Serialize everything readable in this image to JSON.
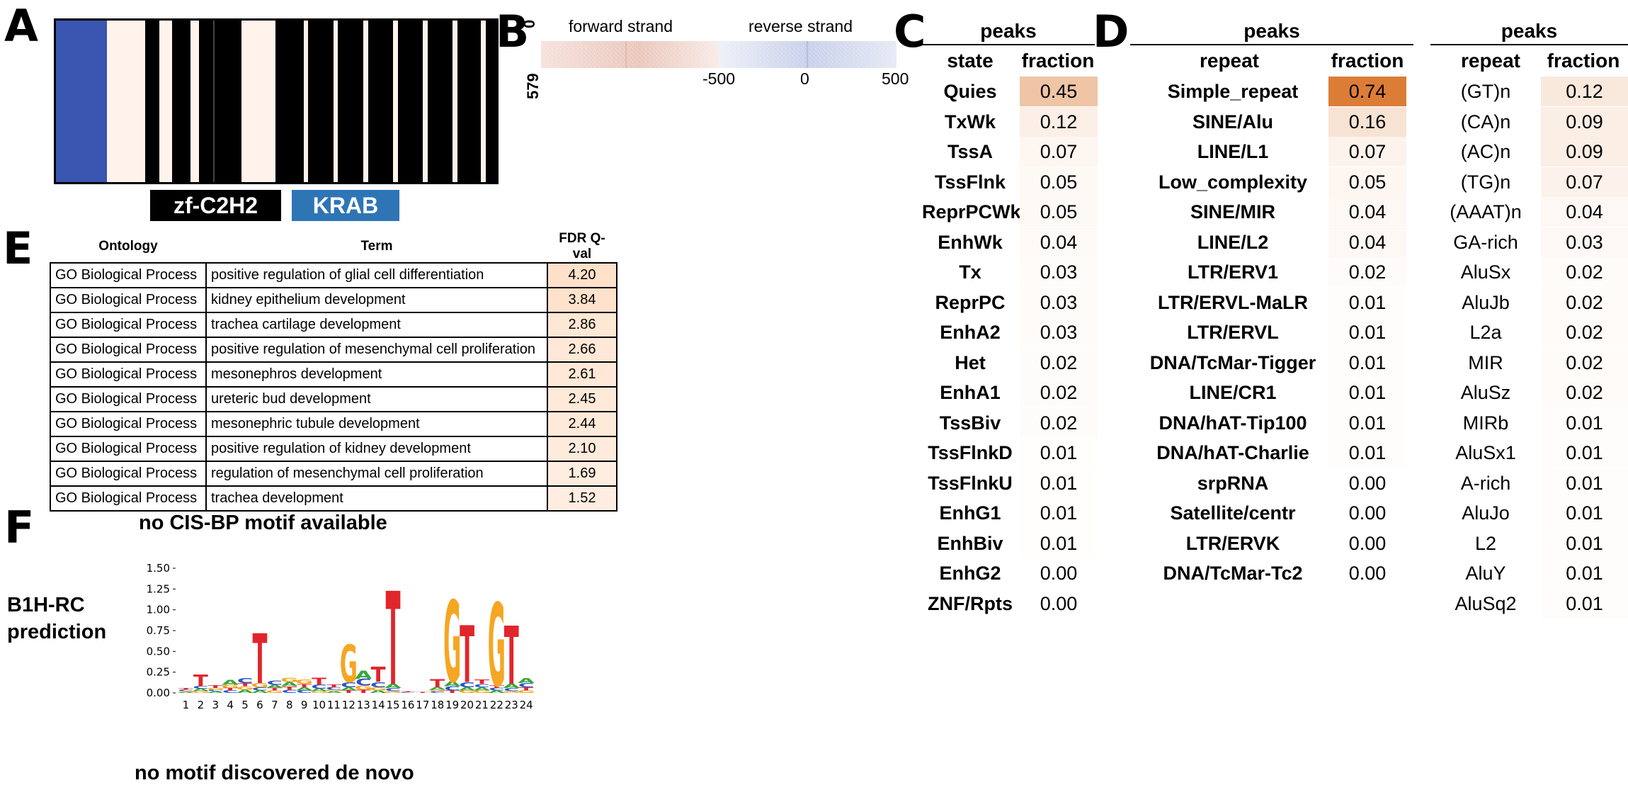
{
  "panel_labels": {
    "a": "A",
    "b": "B",
    "c": "C",
    "d": "D",
    "e": "E",
    "f": "F"
  },
  "panel_a": {
    "domains": [
      {
        "label": "zf-C2H2",
        "color": "#000000"
      },
      {
        "label": "KRAB",
        "color": "#2e75b6"
      }
    ],
    "colors": {
      "krab_bar": "#3a55b0",
      "light_bar": "#fff3ec",
      "background": "#000000",
      "thin_line": "#444444"
    }
  },
  "panel_b": {
    "y_top": "0",
    "y_bottom": "579",
    "forward_label": "forward strand",
    "reverse_label": "reverse strand",
    "x_ticks": [
      "-500",
      "0",
      "500"
    ],
    "colors": {
      "forward": "#c45a46",
      "reverse": "#4a63b0"
    }
  },
  "panel_c": {
    "group_header": "peaks",
    "col_headers": [
      "state",
      "fraction"
    ],
    "rows": [
      {
        "label": "Quies",
        "value": "0.45"
      },
      {
        "label": "TxWk",
        "value": "0.12"
      },
      {
        "label": "TssA",
        "value": "0.07"
      },
      {
        "label": "TssFlnk",
        "value": "0.05"
      },
      {
        "label": "ReprPCWk",
        "value": "0.05"
      },
      {
        "label": "EnhWk",
        "value": "0.04"
      },
      {
        "label": "Tx",
        "value": "0.03"
      },
      {
        "label": "ReprPC",
        "value": "0.03"
      },
      {
        "label": "EnhA2",
        "value": "0.03"
      },
      {
        "label": "Het",
        "value": "0.02"
      },
      {
        "label": "EnhA1",
        "value": "0.02"
      },
      {
        "label": "TssBiv",
        "value": "0.02"
      },
      {
        "label": "TssFlnkD",
        "value": "0.01"
      },
      {
        "label": "TssFlnkU",
        "value": "0.01"
      },
      {
        "label": "EnhG1",
        "value": "0.01"
      },
      {
        "label": "EnhBiv",
        "value": "0.01"
      },
      {
        "label": "EnhG2",
        "value": "0.00"
      },
      {
        "label": "ZNF/Rpts",
        "value": "0.00"
      }
    ]
  },
  "panel_d_left": {
    "group_header": "peaks",
    "col_headers": [
      "repeat",
      "fraction"
    ],
    "rows": [
      {
        "label": "Simple_repeat",
        "value": "0.74"
      },
      {
        "label": "SINE/Alu",
        "value": "0.16"
      },
      {
        "label": "LINE/L1",
        "value": "0.07"
      },
      {
        "label": "Low_complexity",
        "value": "0.05"
      },
      {
        "label": "SINE/MIR",
        "value": "0.04"
      },
      {
        "label": "LINE/L2",
        "value": "0.04"
      },
      {
        "label": "LTR/ERV1",
        "value": "0.02"
      },
      {
        "label": "LTR/ERVL-MaLR",
        "value": "0.01"
      },
      {
        "label": "LTR/ERVL",
        "value": "0.01"
      },
      {
        "label": "DNA/TcMar-Tigger",
        "value": "0.01"
      },
      {
        "label": "LINE/CR1",
        "value": "0.01"
      },
      {
        "label": "DNA/hAT-Tip100",
        "value": "0.01"
      },
      {
        "label": "DNA/hAT-Charlie",
        "value": "0.01"
      },
      {
        "label": "srpRNA",
        "value": "0.00"
      },
      {
        "label": "Satellite/centr",
        "value": "0.00"
      },
      {
        "label": "LTR/ERVK",
        "value": "0.00"
      },
      {
        "label": "DNA/TcMar-Tc2",
        "value": "0.00"
      }
    ]
  },
  "panel_d_right": {
    "group_header": "peaks",
    "col_headers": [
      "repeat",
      "fraction"
    ],
    "rows": [
      {
        "label": "(GT)n",
        "value": "0.12"
      },
      {
        "label": "(CA)n",
        "value": "0.09"
      },
      {
        "label": "(AC)n",
        "value": "0.09"
      },
      {
        "label": "(TG)n",
        "value": "0.07"
      },
      {
        "label": "(AAAT)n",
        "value": "0.04"
      },
      {
        "label": "GA-rich",
        "value": "0.03"
      },
      {
        "label": "AluSx",
        "value": "0.02"
      },
      {
        "label": "AluJb",
        "value": "0.02"
      },
      {
        "label": "L2a",
        "value": "0.02"
      },
      {
        "label": "MIR",
        "value": "0.02"
      },
      {
        "label": "AluSz",
        "value": "0.02"
      },
      {
        "label": "MIRb",
        "value": "0.01"
      },
      {
        "label": "AluSx1",
        "value": "0.01"
      },
      {
        "label": "A-rich",
        "value": "0.01"
      },
      {
        "label": "AluJo",
        "value": "0.01"
      },
      {
        "label": "L2",
        "value": "0.01"
      },
      {
        "label": "AluY",
        "value": "0.01"
      },
      {
        "label": "AluSq2",
        "value": "0.01"
      }
    ]
  },
  "panel_e": {
    "headers": [
      "Ontology",
      "Term",
      "FDR Q-val"
    ],
    "rows": [
      {
        "ontology": "GO Biological Process",
        "term": "positive regulation of glial cell differentiation",
        "fdr": "4.20"
      },
      {
        "ontology": "GO Biological Process",
        "term": "kidney epithelium development",
        "fdr": "3.84"
      },
      {
        "ontology": "GO Biological Process",
        "term": "trachea cartilage development",
        "fdr": "2.86"
      },
      {
        "ontology": "GO Biological Process",
        "term": "positive regulation of mesenchymal cell proliferation",
        "fdr": "2.66"
      },
      {
        "ontology": "GO Biological Process",
        "term": "mesonephros development",
        "fdr": "2.61"
      },
      {
        "ontology": "GO Biological Process",
        "term": "ureteric bud development",
        "fdr": "2.45"
      },
      {
        "ontology": "GO Biological Process",
        "term": "mesonephric tubule development",
        "fdr": "2.44"
      },
      {
        "ontology": "GO Biological Process",
        "term": "positive regulation of kidney development",
        "fdr": "2.10"
      },
      {
        "ontology": "GO Biological Process",
        "term": "regulation of mesenchymal cell proliferation",
        "fdr": "1.69"
      },
      {
        "ontology": "GO Biological Process",
        "term": "trachea development",
        "fdr": "1.52"
      }
    ]
  },
  "panel_f": {
    "cisbp_text": "no CIS-BP motif available",
    "prediction_label_line1": "B1H-RC",
    "prediction_label_line2": "prediction",
    "denovo_text": "no motif discovered de novo",
    "colors": {
      "A": "#3aa63a",
      "C": "#2a56c6",
      "G": "#f5a623",
      "T": "#e0262c"
    }
  },
  "chart_data": {
    "type": "bar",
    "ylim": [
      0,
      1.5
    ],
    "y_ticks": [
      "0.00",
      "0.25",
      "0.50",
      "0.75",
      "1.00",
      "1.25",
      "1.50"
    ],
    "categories": [
      "1",
      "2",
      "3",
      "4",
      "5",
      "6",
      "7",
      "8",
      "9",
      "10",
      "11",
      "12",
      "13",
      "14",
      "15",
      "16",
      "17",
      "18",
      "19",
      "20",
      "21",
      "22",
      "23",
      "24"
    ],
    "series": [
      {
        "name": "A",
        "values": [
          0.01,
          0.03,
          0.02,
          0.06,
          0.04,
          0.03,
          0.04,
          0.05,
          0.04,
          0.03,
          0.02,
          0.04,
          0.1,
          0.03,
          0.05,
          0.0,
          0.0,
          0.03,
          0.06,
          0.04,
          0.04,
          0.03,
          0.05,
          0.06
        ]
      },
      {
        "name": "C",
        "values": [
          0.02,
          0.03,
          0.02,
          0.03,
          0.06,
          0.04,
          0.05,
          0.04,
          0.03,
          0.05,
          0.03,
          0.06,
          0.08,
          0.06,
          0.04,
          0.01,
          0.0,
          0.02,
          0.05,
          0.06,
          0.04,
          0.03,
          0.04,
          0.05
        ]
      },
      {
        "name": "G",
        "values": [
          0.01,
          0.02,
          0.02,
          0.04,
          0.04,
          0.05,
          0.03,
          0.05,
          0.05,
          0.02,
          0.02,
          0.45,
          0.05,
          0.04,
          0.02,
          0.0,
          0.0,
          0.02,
          0.98,
          0.03,
          0.03,
          1.0,
          0.02,
          0.03
        ]
      },
      {
        "name": "T",
        "values": [
          0.02,
          0.14,
          0.03,
          0.03,
          0.04,
          0.6,
          0.03,
          0.04,
          0.04,
          0.08,
          0.03,
          0.03,
          0.04,
          0.18,
          1.12,
          0.01,
          0.01,
          0.1,
          0.03,
          0.68,
          0.05,
          0.03,
          0.7,
          0.04
        ]
      }
    ]
  }
}
